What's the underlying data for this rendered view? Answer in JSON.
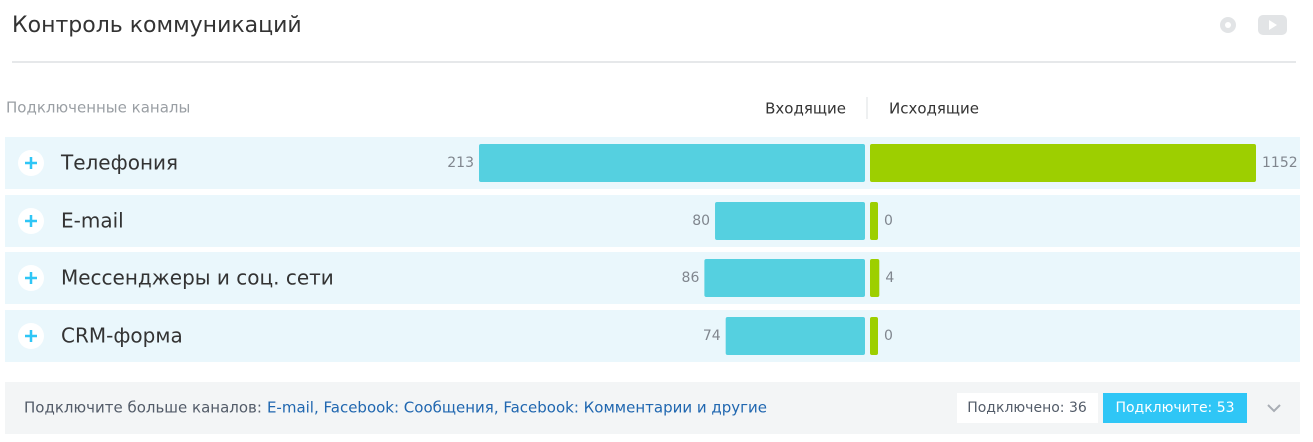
{
  "header": {
    "title": "Контроль коммуникаций"
  },
  "channels": {
    "label": "Подключенные каналы",
    "incoming_label": "Входящие",
    "outgoing_label": "Исходящие",
    "rows": [
      {
        "name": "Телефония",
        "incoming": 213,
        "outgoing": 1152
      },
      {
        "name": "E-mail",
        "incoming": 80,
        "outgoing": 0
      },
      {
        "name": "Мессенджеры и соц. сети",
        "incoming": 86,
        "outgoing": 4
      },
      {
        "name": "CRM-форма",
        "incoming": 74,
        "outgoing": 0
      }
    ],
    "incoming_color": "#55d0e0",
    "outgoing_color": "#9dcf00"
  },
  "footer": {
    "prompt": "Подключите больше каналов:",
    "links": "E-mail, Facebook: Сообщения, Facebook: Комментарии и другие",
    "connected": "Подключено: 36",
    "button": "Подключите: 53"
  }
}
